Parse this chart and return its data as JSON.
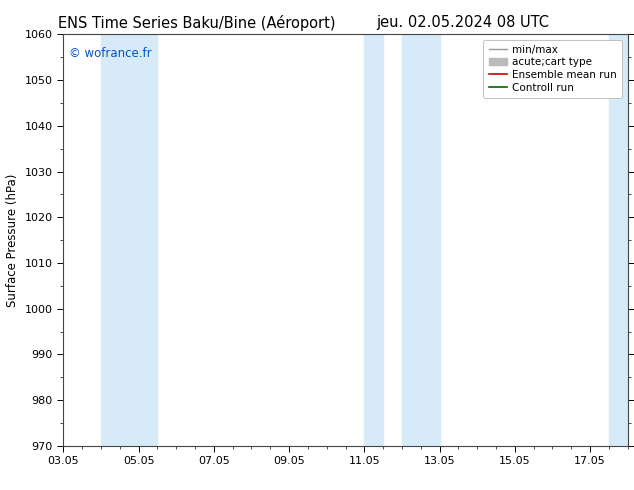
{
  "title_left": "ENS Time Series Baku/Bine (Aéroport)",
  "title_right": "jeu. 02.05.2024 08 UTC",
  "ylabel": "Surface Pressure (hPa)",
  "ylim": [
    970,
    1060
  ],
  "yticks": [
    970,
    980,
    990,
    1000,
    1010,
    1020,
    1030,
    1040,
    1050,
    1060
  ],
  "xtick_positions": [
    3,
    5,
    7,
    9,
    11,
    13,
    15,
    17
  ],
  "xtick_labels": [
    "03.05",
    "05.05",
    "07.05",
    "09.05",
    "11.05",
    "13.05",
    "15.05",
    "17.05"
  ],
  "watermark": "© wofrance.fr",
  "watermark_color": "#0055cc",
  "bg_color": "#ffffff",
  "plot_bg_color": "#ffffff",
  "shaded_bands": [
    {
      "xstart": 4.0,
      "xend": 5.0,
      "color": "#d6eaf8"
    },
    {
      "xstart": 5.0,
      "xend": 5.5,
      "color": "#d6eaf8"
    },
    {
      "xstart": 11.0,
      "xend": 11.5,
      "color": "#d6eaf8"
    },
    {
      "xstart": 12.0,
      "xend": 13.0,
      "color": "#d6eaf8"
    },
    {
      "xstart": 17.5,
      "xend": 18.01,
      "color": "#d6eaf8"
    }
  ],
  "legend_entries": [
    {
      "label": "min/max",
      "color": "#999999",
      "lw": 1.0
    },
    {
      "label": "acute;cart type",
      "color": "#bbbbbb",
      "lw": 5
    },
    {
      "label": "Ensemble mean run",
      "color": "#cc0000",
      "lw": 1.2
    },
    {
      "label": "Controll run",
      "color": "#006600",
      "lw": 1.2
    }
  ],
  "spine_color": "#444444",
  "tick_color": "#000000",
  "title_fontsize": 10.5,
  "label_fontsize": 8.5,
  "tick_fontsize": 8,
  "legend_fontsize": 7.5,
  "watermark_fontsize": 8.5
}
